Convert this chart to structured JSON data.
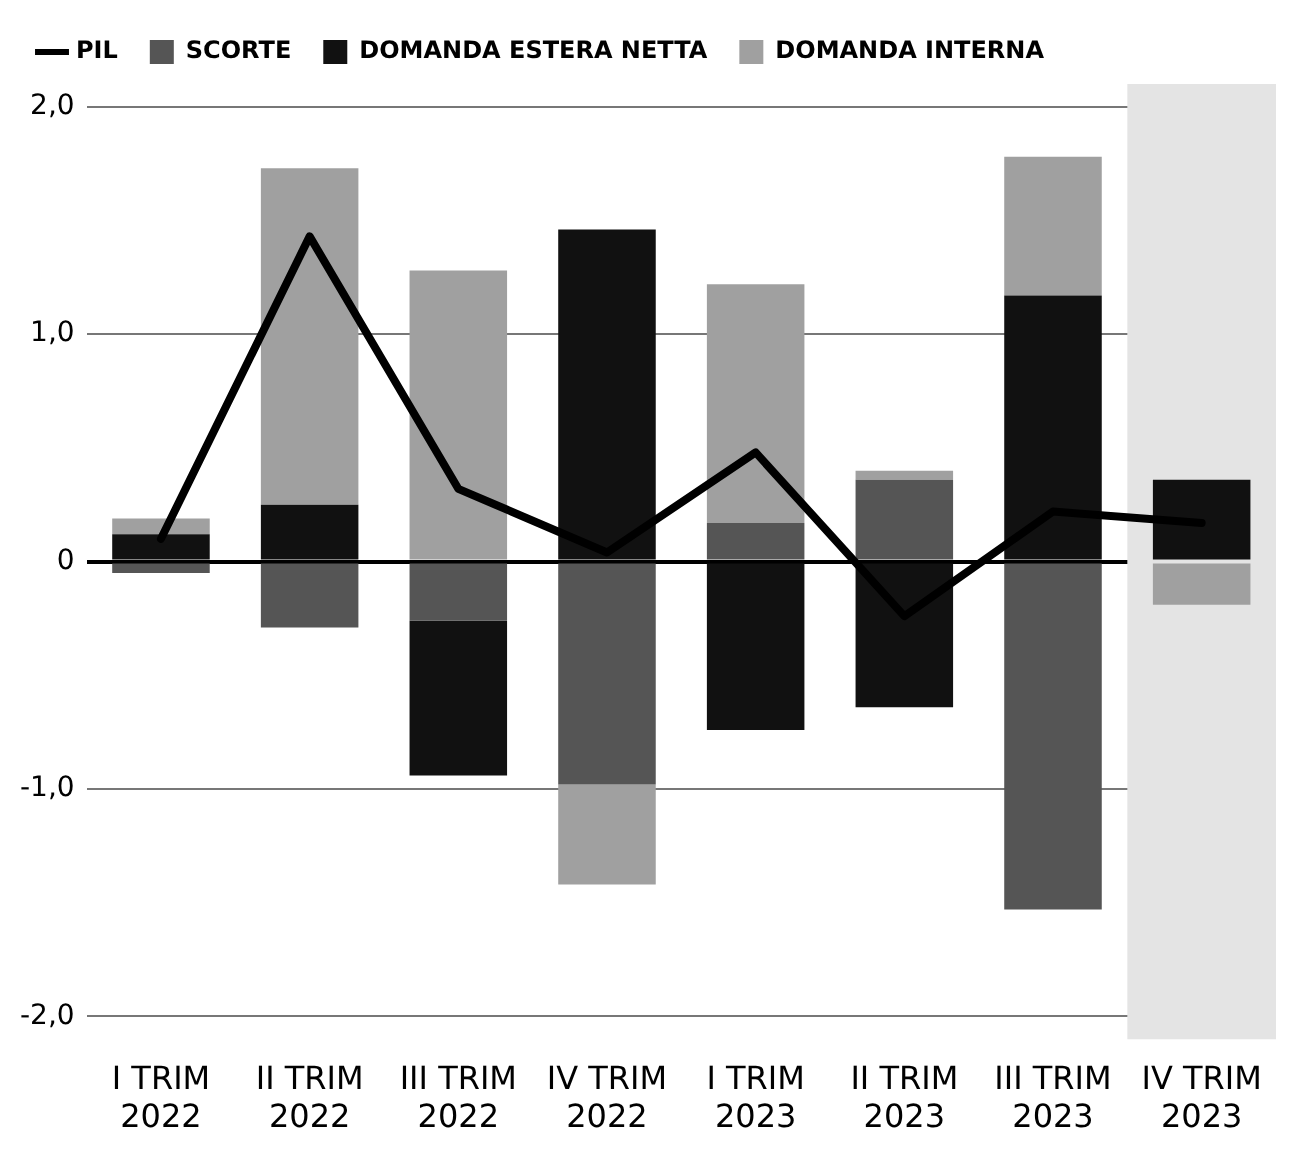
{
  "chart_data": {
    "type": "bar",
    "stacked": true,
    "categories": [
      "I TRIM\n2022",
      "II TRIM\n2022",
      "III TRIM\n2022",
      "IV TRIM\n2022",
      "I TRIM\n2023",
      "II TRIM\n2023",
      "III TRIM\n2023",
      "IV TRIM\n2023"
    ],
    "series": [
      {
        "name": "PIL",
        "type": "line",
        "color": "#000000",
        "values": [
          0.1,
          1.43,
          0.32,
          0.04,
          0.48,
          -0.24,
          0.22,
          0.17
        ]
      },
      {
        "name": "SCORTE",
        "color": "#555555",
        "values": [
          -0.05,
          -0.29,
          -0.26,
          -0.98,
          0.17,
          0.36,
          -1.53,
          null
        ]
      },
      {
        "name": "DOMANDA ESTERA NETTA",
        "color": "#111111",
        "values": [
          0.12,
          0.25,
          -0.68,
          1.46,
          -0.74,
          -0.64,
          1.17,
          0.36
        ]
      },
      {
        "name": "DOMANDA INTERNA",
        "color": "#a0a0a0",
        "values": [
          0.07,
          1.48,
          1.28,
          -0.44,
          1.05,
          0.04,
          0.61,
          -0.19
        ]
      }
    ],
    "ylim": [
      -2.1,
      2.1
    ],
    "yticks": [
      {
        "value": 2,
        "label": "2,0"
      },
      {
        "value": 1,
        "label": "1,0"
      },
      0,
      {
        "value": -1,
        "label": "-1,0"
      },
      {
        "value": -2,
        "label": "-2,0"
      }
    ],
    "grid": "y",
    "legend": "top left",
    "marker": "none",
    "line_style": "solid",
    "bands": [
      {
        "axis": "x",
        "from": "IV TRIM\n2023",
        "to": "IV TRIM\n2023",
        "color": "#e4e4e4"
      }
    ]
  }
}
